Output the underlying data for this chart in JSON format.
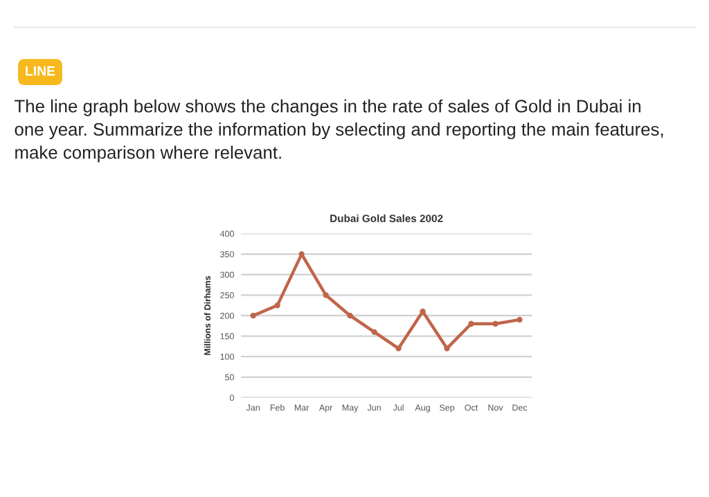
{
  "chart_data": {
    "type": "line",
    "title": "Dubai Gold Sales 2002",
    "ylabel": "Millions of Dirhams",
    "annotations": [
      "LINE",
      "The line graph below shows the changes in the rate of sales of Gold in Dubai in one year. Summarize the information by selecting and reporting the main features, make comparison where relevant."
    ],
    "categories": [
      "Jan",
      "Feb",
      "Mar",
      "Apr",
      "May",
      "Jun",
      "Jul",
      "Aug",
      "Sep",
      "Oct",
      "Nov",
      "Dec"
    ],
    "series": [
      {
        "color": "#c0654a",
        "values": [
          200,
          225,
          350,
          250,
          200,
          160,
          120,
          210,
          120,
          180,
          180,
          190
        ]
      }
    ],
    "ylim": [
      0,
      400
    ],
    "yticks": [
      0,
      50,
      100,
      150,
      200,
      250,
      300,
      350,
      400
    ],
    "grid": "y",
    "marker": "circle",
    "line_style": "solid"
  }
}
